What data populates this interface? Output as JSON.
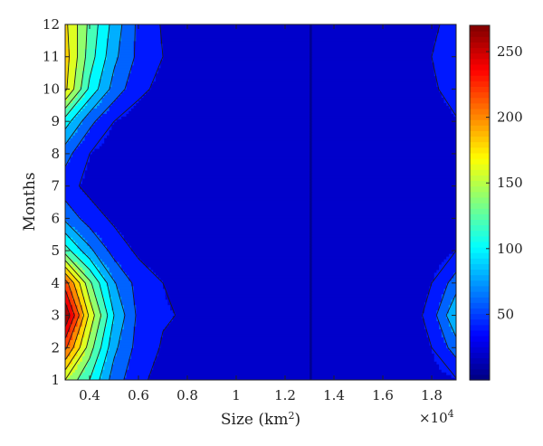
{
  "chart_data": {
    "type": "contour",
    "xlabel": "Size (km",
    "xlabel_sup": "2",
    "xlabel_tail": ")",
    "ylabel": "Months",
    "x_multiplier_label": "×10",
    "x_multiplier_exp": "4",
    "xlim": [
      0.3,
      1.9
    ],
    "ylim": [
      1,
      12
    ],
    "x_ticks": [
      0.4,
      0.6,
      0.8,
      1.0,
      1.2,
      1.4,
      1.6,
      1.8
    ],
    "x_tick_labels": [
      "0.4",
      "0.6",
      "0.8",
      "1",
      "1.2",
      "1.4",
      "1.6",
      "1.8"
    ],
    "y_ticks": [
      1,
      2,
      3,
      4,
      5,
      6,
      7,
      8,
      9,
      10,
      11,
      12
    ],
    "y_tick_labels": [
      "1",
      "2",
      "3",
      "4",
      "5",
      "6",
      "7",
      "8",
      "9",
      "10",
      "11",
      "12"
    ],
    "colorbar": {
      "range": [
        0,
        270
      ],
      "ticks": [
        50,
        100,
        150,
        200,
        250
      ],
      "tick_labels": [
        "50",
        "100",
        "150",
        "200",
        "250"
      ],
      "colormap": "jet"
    },
    "x": [
      0.3,
      0.4,
      0.5,
      0.6,
      0.7,
      0.8,
      0.9,
      1.0,
      1.1,
      1.2,
      1.3,
      1.4,
      1.5,
      1.6,
      1.7,
      1.8,
      1.9
    ],
    "y": [
      1,
      2,
      3,
      4,
      5,
      6,
      7,
      8,
      9,
      10,
      11,
      12
    ],
    "z": [
      [
        150,
        110,
        60,
        35,
        22,
        18,
        14,
        10,
        10,
        10,
        10,
        10,
        10,
        10,
        12,
        22,
        28
      ],
      [
        215,
        140,
        75,
        42,
        28,
        22,
        18,
        14,
        10,
        10,
        10,
        10,
        10,
        10,
        12,
        30,
        60
      ],
      [
        270,
        165,
        90,
        45,
        32,
        28,
        22,
        18,
        12,
        10,
        10,
        10,
        10,
        10,
        14,
        40,
        90
      ],
      [
        220,
        135,
        72,
        42,
        30,
        22,
        16,
        12,
        10,
        10,
        10,
        10,
        10,
        10,
        12,
        30,
        60
      ],
      [
        120,
        75,
        42,
        26,
        18,
        14,
        10,
        10,
        10,
        10,
        10,
        10,
        10,
        10,
        10,
        18,
        30
      ],
      [
        65,
        40,
        26,
        16,
        10,
        10,
        10,
        10,
        10,
        10,
        10,
        10,
        10,
        10,
        10,
        14,
        20
      ],
      [
        38,
        24,
        15,
        10,
        10,
        10,
        10,
        10,
        10,
        10,
        10,
        10,
        10,
        10,
        10,
        14,
        20
      ],
      [
        58,
        30,
        18,
        12,
        10,
        10,
        10,
        10,
        10,
        10,
        10,
        10,
        10,
        10,
        10,
        16,
        22
      ],
      [
        100,
        56,
        30,
        20,
        14,
        10,
        10,
        10,
        10,
        10,
        10,
        10,
        10,
        10,
        10,
        20,
        28
      ],
      [
        175,
        105,
        62,
        35,
        24,
        18,
        12,
        10,
        10,
        10,
        10,
        10,
        10,
        10,
        14,
        26,
        40
      ],
      [
        180,
        120,
        75,
        45,
        30,
        22,
        15,
        10,
        10,
        10,
        10,
        10,
        10,
        10,
        16,
        30,
        45
      ],
      [
        175,
        125,
        82,
        45,
        28,
        20,
        14,
        10,
        10,
        10,
        10,
        10,
        10,
        10,
        14,
        26,
        38
      ]
    ]
  }
}
